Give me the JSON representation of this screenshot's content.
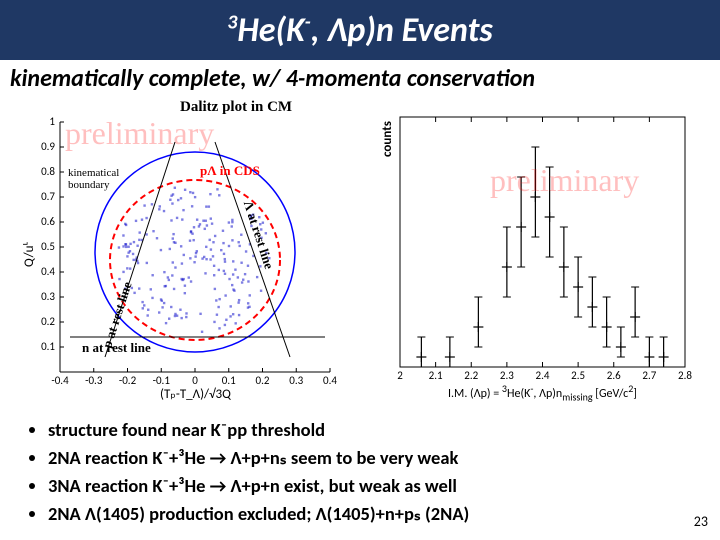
{
  "banner_html": "<sup>3</sup>He(K<sup>-</sup>, Λp)n Events",
  "subtitle": "kinematically complete, w/ 4-momenta conservation",
  "dalitz": {
    "title": "Dalitz plot in CM",
    "watermark": "preliminary",
    "boundary_label": "kinematical\nboundary",
    "region_label": "pΛ in CDS",
    "diag_p": "p at rest line",
    "diag_L": "Λ at rest line",
    "diag_n": "n at rest line",
    "xlabel": "(Tₚ-T_Λ)/√3Q",
    "ylabel": "Q/uᴸ",
    "xlim": [
      -0.4,
      0.4
    ],
    "ylim": [
      0.0,
      1.0
    ],
    "xticks": [
      -0.4,
      -0.3,
      -0.2,
      -0.1,
      0,
      0.1,
      0.2,
      0.3,
      0.4
    ],
    "yticks": [
      0.1,
      0.2,
      0.3,
      0.4,
      0.5,
      0.6,
      0.7,
      0.8,
      0.9,
      1.0
    ],
    "title_fontsize": 15,
    "boundary_color": "#0000ff",
    "region_color": "#ff0000",
    "diag_color": "#000000",
    "tick_fontsize": 11
  },
  "mass": {
    "watermark": "preliminary",
    "ylabel": "counts",
    "xlabel_html": "I.M. (Λp) = <sup>3</sup>He(K<sup>-</sup>, Λp)n<sub>missing</sub>  [GeV/c<sup>2</sup>]",
    "xlim": [
      2.0,
      2.8
    ],
    "xticks": [
      2.0,
      2.1,
      2.2,
      2.3,
      2.4,
      2.5,
      2.6,
      2.7,
      2.8
    ],
    "points": [
      {
        "x": 2.06,
        "y": 1,
        "el": 1,
        "eh": 2
      },
      {
        "x": 2.14,
        "y": 1,
        "el": 1,
        "eh": 2
      },
      {
        "x": 2.22,
        "y": 4,
        "el": 2,
        "eh": 3
      },
      {
        "x": 2.3,
        "y": 10,
        "el": 3,
        "eh": 4
      },
      {
        "x": 2.34,
        "y": 14,
        "el": 4,
        "eh": 5
      },
      {
        "x": 2.38,
        "y": 17,
        "el": 4,
        "eh": 5
      },
      {
        "x": 2.42,
        "y": 15,
        "el": 4,
        "eh": 5
      },
      {
        "x": 2.46,
        "y": 10,
        "el": 3,
        "eh": 4
      },
      {
        "x": 2.5,
        "y": 8,
        "el": 3,
        "eh": 3
      },
      {
        "x": 2.54,
        "y": 6,
        "el": 2,
        "eh": 3
      },
      {
        "x": 2.58,
        "y": 4,
        "el": 2,
        "eh": 3
      },
      {
        "x": 2.62,
        "y": 2,
        "el": 1,
        "eh": 2
      },
      {
        "x": 2.66,
        "y": 5,
        "el": 2,
        "eh": 3
      },
      {
        "x": 2.7,
        "y": 1,
        "el": 1,
        "eh": 2
      },
      {
        "x": 2.74,
        "y": 1,
        "el": 1,
        "eh": 2
      }
    ],
    "ymax": 25,
    "marker_color": "#000000",
    "tick_fontsize": 11
  },
  "bullets": [
    "structure found near K⁻pp threshold",
    "2NA reaction K⁻+³He → Λ+p+nₛ seem to be very weak",
    "3NA reaction K⁻+³He → Λ+p+n exist, but weak as well",
    "2NA Λ(1405) production excluded; Λ(1405)+n+pₛ (2NA)"
  ],
  "slidenum": "23"
}
